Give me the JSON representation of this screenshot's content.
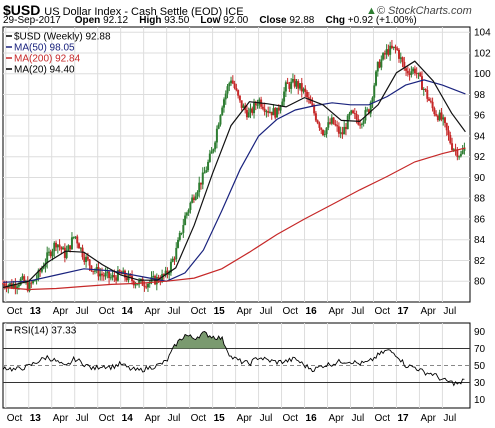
{
  "header": {
    "symbol": "$USD",
    "description": "US Dollar Index - Cash Settle (EOD) ICE",
    "date": "29-Sep-2017",
    "open_label": "Open",
    "open": "92.12",
    "high_label": "High",
    "high": "93.50",
    "low_label": "Low",
    "low": "92.00",
    "close_label": "Close",
    "close": "92.88",
    "chg_label": "Chg",
    "chg": "+0.92 (+1.00%)",
    "credit": "© StockCharts.com",
    "credit_icon": "up-arrow-icon"
  },
  "chart_data": [
    {
      "type": "line",
      "title": "$USD (Weekly) 92.88",
      "ylim": [
        78,
        104.5
      ],
      "yticks": [
        80,
        82,
        84,
        86,
        88,
        90,
        92,
        94,
        96,
        98,
        100,
        102,
        104
      ],
      "x_tick_labels": [
        "Oct",
        "13",
        "Apr",
        "Jul",
        "Oct",
        "14",
        "Apr",
        "Jul",
        "Oct",
        "15",
        "Apr",
        "Jul",
        "Oct",
        "16",
        "Apr",
        "Jul",
        "Oct",
        "17",
        "Apr",
        "Jul"
      ],
      "legend": [
        {
          "label": "$USD (Weekly) 92.88",
          "color": "#000000"
        },
        {
          "label": "MA(50) 98.05",
          "color": "#1a237e"
        },
        {
          "label": "MA(200) 92.84",
          "color": "#c62828"
        },
        {
          "label": "MA(20) 94.40",
          "color": "#000000"
        }
      ],
      "colors": {
        "up": "#2e7d32",
        "down": "#c62828",
        "ma50": "#1a237e",
        "ma200": "#c62828",
        "ma20": "#111111",
        "grid": "#dddddd"
      },
      "series": [
        {
          "name": "$USD (Weekly) 92.88",
          "x": [
            2012.72,
            2012.82,
            2012.92,
            2013.0,
            2013.1,
            2013.2,
            2013.3,
            2013.4,
            2013.5,
            2013.6,
            2013.7,
            2013.8,
            2013.9,
            2014.0,
            2014.1,
            2014.2,
            2014.3,
            2014.4,
            2014.5,
            2014.6,
            2014.7,
            2014.8,
            2014.9,
            2015.0,
            2015.1,
            2015.2,
            2015.3,
            2015.4,
            2015.5,
            2015.6,
            2015.7,
            2015.8,
            2015.9,
            2016.0,
            2016.1,
            2016.2,
            2016.3,
            2016.4,
            2016.5,
            2016.6,
            2016.7,
            2016.8,
            2016.9,
            2017.0,
            2017.1,
            2017.2,
            2017.3,
            2017.4,
            2017.5,
            2017.6,
            2017.7,
            2017.75
          ],
          "values": [
            79.8,
            79.6,
            80.1,
            79.4,
            80.5,
            82.3,
            83.8,
            82.5,
            84.5,
            82.4,
            81.2,
            80.6,
            80.3,
            80.7,
            80.2,
            79.8,
            79.9,
            80.2,
            80.6,
            82.8,
            86.2,
            88.4,
            90.1,
            92.6,
            97.0,
            99.6,
            97.1,
            96.0,
            97.5,
            96.5,
            96.2,
            98.8,
            99.1,
            98.2,
            96.3,
            94.4,
            95.4,
            94.0,
            96.1,
            95.4,
            96.5,
            100.8,
            102.2,
            102.4,
            100.2,
            100.4,
            98.5,
            96.5,
            95.5,
            93.1,
            92.1,
            92.9
          ]
        },
        {
          "name": "MA(50) 98.05",
          "x": [
            2012.72,
            2013.0,
            2013.3,
            2013.6,
            2013.9,
            2014.2,
            2014.5,
            2014.7,
            2014.9,
            2015.1,
            2015.3,
            2015.5,
            2015.7,
            2015.9,
            2016.1,
            2016.3,
            2016.5,
            2016.7,
            2016.9,
            2017.1,
            2017.3,
            2017.5,
            2017.75
          ],
          "values": [
            79.9,
            80.0,
            80.6,
            81.2,
            81.0,
            80.5,
            80.0,
            80.8,
            83.0,
            86.8,
            90.8,
            94.0,
            95.6,
            96.5,
            96.9,
            97.2,
            97.0,
            97.0,
            97.8,
            98.9,
            99.4,
            98.9,
            98.05
          ]
        },
        {
          "name": "MA(200) 92.84",
          "x": [
            2012.72,
            2013.0,
            2013.3,
            2013.6,
            2013.9,
            2014.2,
            2014.5,
            2014.8,
            2015.1,
            2015.4,
            2015.7,
            2016.0,
            2016.3,
            2016.6,
            2016.9,
            2017.2,
            2017.5,
            2017.75
          ],
          "values": [
            79.4,
            79.2,
            79.3,
            79.5,
            79.7,
            79.8,
            80.0,
            80.3,
            81.2,
            82.8,
            84.5,
            86.0,
            87.4,
            88.8,
            90.1,
            91.5,
            92.3,
            92.84
          ]
        },
        {
          "name": "MA(20) 94.40",
          "x": [
            2012.72,
            2013.0,
            2013.2,
            2013.4,
            2013.6,
            2013.8,
            2014.0,
            2014.2,
            2014.4,
            2014.6,
            2014.8,
            2015.0,
            2015.2,
            2015.4,
            2015.6,
            2015.8,
            2016.0,
            2016.2,
            2016.4,
            2016.6,
            2016.8,
            2017.0,
            2017.2,
            2017.4,
            2017.6,
            2017.75
          ],
          "values": [
            79.4,
            80.0,
            81.8,
            82.9,
            82.8,
            81.6,
            80.6,
            80.1,
            80.1,
            81.3,
            85.4,
            90.4,
            95.0,
            97.3,
            97.1,
            96.8,
            97.7,
            97.0,
            95.5,
            95.4,
            97.0,
            100.1,
            101.2,
            99.3,
            96.2,
            94.4
          ]
        }
      ]
    },
    {
      "type": "line",
      "title": "RSI(14) 37.33",
      "ylim": [
        0,
        100
      ],
      "yticks": [
        10,
        30,
        50,
        70,
        90
      ],
      "reference_lines": [
        30,
        50,
        70
      ],
      "overbought_fill_color": "#7a9a6f",
      "series": [
        {
          "name": "RSI(14) 37.33",
          "x": [
            2012.72,
            2012.85,
            2013.0,
            2013.1,
            2013.2,
            2013.3,
            2013.4,
            2013.5,
            2013.6,
            2013.7,
            2013.8,
            2013.9,
            2014.0,
            2014.1,
            2014.2,
            2014.3,
            2014.4,
            2014.5,
            2014.6,
            2014.7,
            2014.8,
            2014.9,
            2015.0,
            2015.1,
            2015.2,
            2015.3,
            2015.4,
            2015.5,
            2015.6,
            2015.7,
            2015.8,
            2015.9,
            2016.0,
            2016.1,
            2016.2,
            2016.3,
            2016.4,
            2016.5,
            2016.6,
            2016.7,
            2016.8,
            2016.9,
            2017.0,
            2017.1,
            2017.2,
            2017.3,
            2017.4,
            2017.5,
            2017.6,
            2017.7,
            2017.75
          ],
          "values": [
            48,
            45,
            49,
            55,
            60,
            55,
            48,
            58,
            52,
            46,
            50,
            48,
            52,
            46,
            44,
            47,
            50,
            55,
            75,
            86,
            82,
            88,
            84,
            82,
            60,
            55,
            52,
            60,
            56,
            54,
            55,
            58,
            50,
            45,
            50,
            52,
            55,
            55,
            52,
            54,
            62,
            68,
            63,
            50,
            48,
            42,
            40,
            33,
            30,
            28,
            37.33
          ]
        }
      ]
    }
  ]
}
